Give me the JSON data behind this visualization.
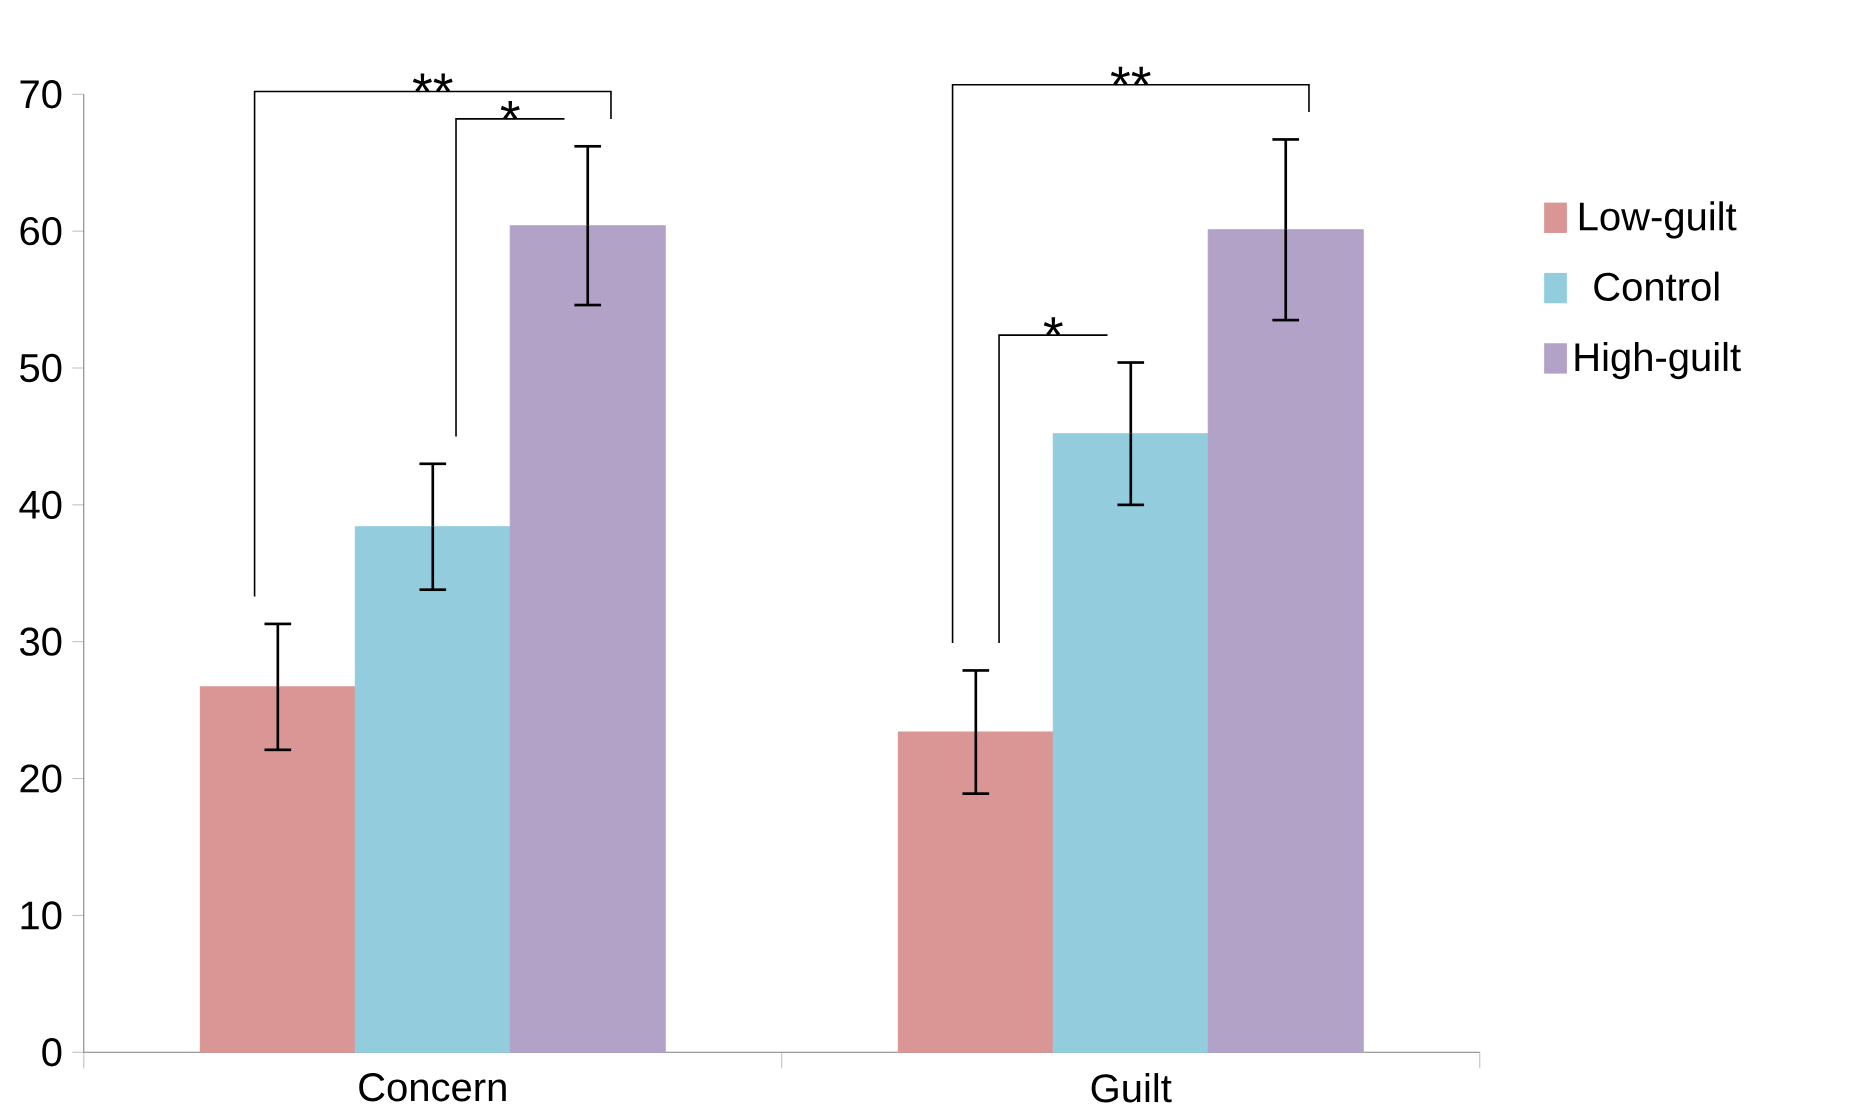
{
  "chart_data": {
    "type": "bar",
    "categories": [
      "Concern",
      "Guilt"
    ],
    "series": [
      {
        "name": "Low-guilt",
        "color": "#d99694",
        "values": [
          26.7,
          23.4
        ],
        "errors": [
          4.6,
          4.5
        ]
      },
      {
        "name": "Control",
        "color": "#93cddd",
        "values": [
          38.4,
          45.2
        ],
        "errors": [
          4.6,
          5.2
        ]
      },
      {
        "name": "High-guilt",
        "color": "#b3a2c7",
        "values": [
          60.4,
          60.1
        ],
        "errors": [
          5.8,
          6.6
        ]
      }
    ],
    "ylim": [
      0,
      70
    ],
    "yticks": [
      0,
      10,
      20,
      30,
      40,
      50,
      60,
      70
    ],
    "grid": false,
    "legend": "right",
    "annotations": [
      "**",
      "*",
      "**",
      "*"
    ]
  }
}
